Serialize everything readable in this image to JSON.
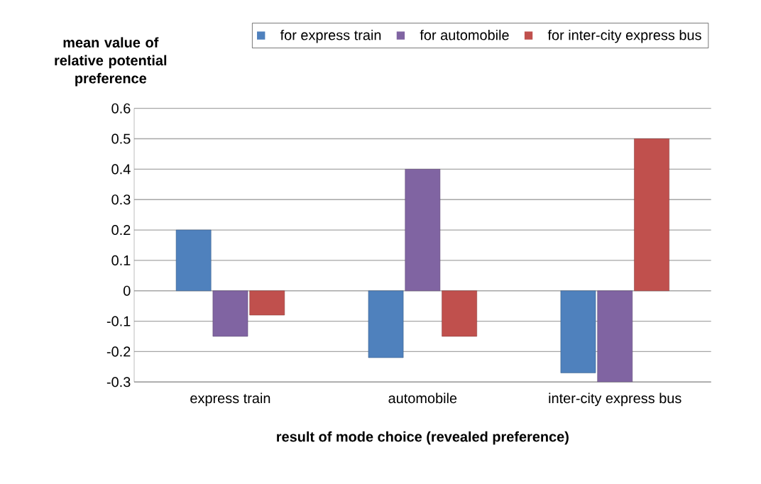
{
  "chart_data": {
    "type": "bar",
    "ylabel": "mean value of relative potential preference",
    "xlabel": "result of mode choice  (revealed preference)",
    "categories": [
      "express train",
      "automobile",
      "inter-city express bus"
    ],
    "series": [
      {
        "name": "for express train",
        "color": "#4f81bd",
        "values": [
          0.2,
          -0.22,
          -0.27
        ]
      },
      {
        "name": "for automobile",
        "color": "#8064a2",
        "values": [
          -0.15,
          0.4,
          -0.3
        ]
      },
      {
        "name": "for inter-city express bus",
        "color": "#c0504d",
        "values": [
          -0.08,
          -0.15,
          0.5
        ]
      }
    ],
    "ylim": [
      -0.3,
      0.6
    ],
    "yticks": [
      -0.3,
      -0.2,
      -0.1,
      0,
      0.1,
      0.2,
      0.3,
      0.4,
      0.5,
      0.6
    ],
    "grid": "y",
    "legend": "top"
  }
}
